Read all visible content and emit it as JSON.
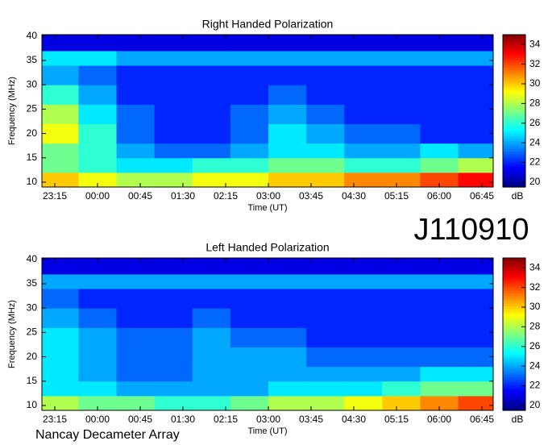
{
  "label": "J110910",
  "footer": "Nancay Decameter Array",
  "chart_data": [
    {
      "type": "heatmap",
      "title": "Right Handed Polarization",
      "xlabel": "Time (UT)",
      "ylabel": "Frequency (MHz)",
      "colorbar_label": "dB",
      "xbins": [
        1.4,
        40,
        80,
        120,
        160,
        200,
        240,
        280,
        320,
        360,
        400,
        440,
        476.9
      ],
      "ybins": [
        9,
        12,
        15,
        18,
        22,
        26,
        30,
        34,
        37,
        40.3
      ],
      "values": [
        [
          30,
          29,
          28,
          28,
          29,
          29,
          30,
          30,
          31,
          31,
          32,
          33
        ],
        [
          27,
          26,
          25,
          25,
          26,
          26,
          27,
          27,
          26,
          26,
          27,
          28
        ],
        [
          27,
          26,
          24,
          23,
          23,
          24,
          25,
          25,
          24,
          24,
          25,
          24
        ],
        [
          29,
          26,
          23,
          22,
          22,
          23,
          25,
          24,
          23,
          23,
          22,
          22
        ],
        [
          28,
          25,
          23,
          22,
          22,
          23,
          24,
          23,
          22,
          22,
          22,
          22
        ],
        [
          26,
          24,
          22,
          22,
          22,
          22,
          23,
          22,
          22,
          22,
          22,
          22
        ],
        [
          24,
          23,
          22,
          22,
          22,
          22,
          22,
          22,
          22,
          22,
          22,
          22
        ],
        [
          25,
          25,
          24,
          24,
          24,
          24,
          24,
          24,
          24,
          24,
          24,
          24
        ],
        [
          21,
          21,
          21,
          21,
          21,
          21,
          21,
          21,
          21,
          21,
          21,
          21
        ]
      ],
      "xlim": [
        1.4,
        476.9
      ],
      "ylim": [
        9,
        40.3
      ],
      "clim": [
        19.5,
        35
      ],
      "xticks": [
        {
          "value": 15,
          "label": "23:15"
        },
        {
          "value": 60,
          "label": "00:00"
        },
        {
          "value": 105,
          "label": "00:45"
        },
        {
          "value": 150,
          "label": "01:30"
        },
        {
          "value": 195,
          "label": "02:15"
        },
        {
          "value": 240,
          "label": "03:00"
        },
        {
          "value": 285,
          "label": "03:45"
        },
        {
          "value": 330,
          "label": "04:30"
        },
        {
          "value": 375,
          "label": "05:15"
        },
        {
          "value": 420,
          "label": "06:00"
        },
        {
          "value": 465,
          "label": "06:45"
        }
      ],
      "yticks": [
        10,
        15,
        20,
        25,
        30,
        35,
        40
      ],
      "cticks": [
        20,
        22,
        24,
        26,
        28,
        30,
        32,
        34
      ],
      "colormap": "jet"
    },
    {
      "type": "heatmap",
      "title": "Left Handed Polarization",
      "xlabel": "Time (UT)",
      "ylabel": "Frequency (MHz)",
      "colorbar_label": "dB",
      "xbins": [
        1.4,
        40,
        80,
        120,
        160,
        200,
        240,
        280,
        320,
        360,
        400,
        440,
        476.9
      ],
      "ybins": [
        9,
        12,
        15,
        18,
        22,
        26,
        30,
        34,
        37,
        40.3
      ],
      "values": [
        [
          28,
          27,
          27,
          26,
          26,
          27,
          28,
          28,
          29,
          30,
          31,
          32
        ],
        [
          25,
          25,
          24,
          24,
          24,
          24,
          25,
          25,
          25,
          26,
          27,
          27
        ],
        [
          25,
          24,
          23,
          23,
          24,
          24,
          24,
          24,
          24,
          24,
          25,
          25
        ],
        [
          25,
          24,
          23,
          23,
          24,
          24,
          24,
          23,
          23,
          23,
          23,
          23
        ],
        [
          25,
          24,
          23,
          23,
          24,
          23,
          23,
          22,
          22,
          22,
          22,
          22
        ],
        [
          24,
          23,
          22,
          22,
          23,
          22,
          22,
          22,
          22,
          22,
          22,
          22
        ],
        [
          23,
          22,
          22,
          22,
          22,
          22,
          22,
          22,
          22,
          22,
          22,
          22
        ],
        [
          24,
          24,
          24,
          24,
          24,
          24,
          24,
          24,
          24,
          24,
          24,
          24
        ],
        [
          21,
          21,
          21,
          21,
          21,
          21,
          21,
          21,
          21,
          21,
          21,
          21
        ]
      ],
      "xlim": [
        1.4,
        476.9
      ],
      "ylim": [
        9,
        40.3
      ],
      "clim": [
        19.5,
        35
      ],
      "xticks": [
        {
          "value": 15,
          "label": "23:15"
        },
        {
          "value": 60,
          "label": "00:00"
        },
        {
          "value": 105,
          "label": "00:45"
        },
        {
          "value": 150,
          "label": "01:30"
        },
        {
          "value": 195,
          "label": "02:15"
        },
        {
          "value": 240,
          "label": "03:00"
        },
        {
          "value": 285,
          "label": "03:45"
        },
        {
          "value": 330,
          "label": "04:30"
        },
        {
          "value": 375,
          "label": "05:15"
        },
        {
          "value": 420,
          "label": "06:00"
        },
        {
          "value": 465,
          "label": "06:45"
        }
      ],
      "yticks": [
        10,
        15,
        20,
        25,
        30,
        35,
        40
      ],
      "cticks": [
        20,
        22,
        24,
        26,
        28,
        30,
        32,
        34
      ],
      "colormap": "jet"
    }
  ]
}
